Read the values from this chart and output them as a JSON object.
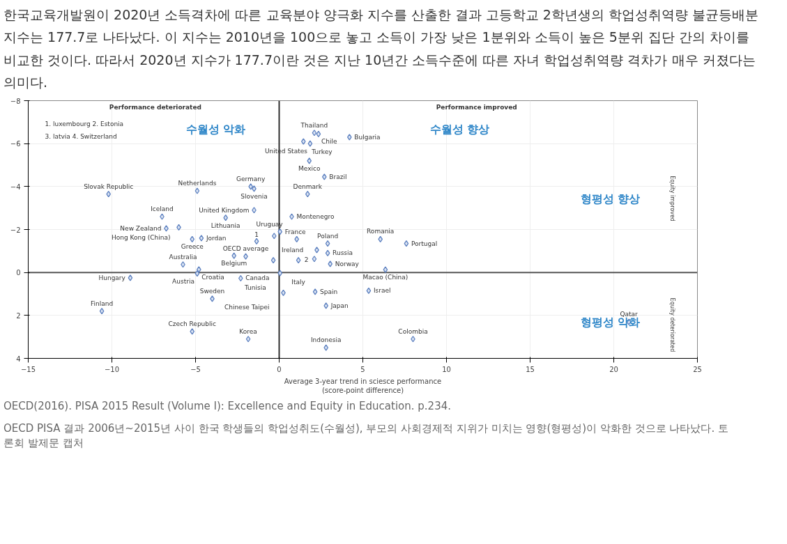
{
  "chart_data": {
    "type": "scatter",
    "xlabel": "Average 3-year trend in sciesce performance\n(score-point difference)",
    "x": [
      -10.2,
      -4.9,
      -1.7,
      -1.5,
      -1.5,
      -7.0,
      -3.2,
      -6.75,
      -6.0,
      -5.2,
      -4.65,
      -1.35,
      -0.3,
      -2.0,
      -2.7,
      -0.35,
      -5.75,
      -4.8,
      -4.9,
      -8.9,
      -2.3,
      -10.6,
      -4.0,
      -5.2,
      -1.85,
      2.1,
      2.35,
      1.45,
      1.85,
      4.2,
      1.8,
      2.7,
      1.7,
      0.75,
      0.05,
      1.05,
      2.9,
      6.05,
      7.6,
      2.9,
      1.15,
      2.25,
      2.1,
      3.05,
      6.35,
      0.05,
      5.35,
      2.15,
      0.25,
      2.8,
      2.8,
      8.0,
      20.9
    ],
    "series": [
      {
        "color": "#5b7fbf",
        "values": [
          -3.65,
          -3.8,
          -4.0,
          -3.9,
          -2.9,
          -2.6,
          -2.55,
          -2.05,
          -2.1,
          -1.55,
          -1.6,
          -1.45,
          -1.7,
          -0.75,
          -0.78,
          -0.57,
          -0.37,
          -0.14,
          0.05,
          0.25,
          0.27,
          1.8,
          1.22,
          2.75,
          3.1,
          -6.5,
          -6.45,
          -6.1,
          -6.0,
          -6.3,
          -5.2,
          -4.45,
          -3.65,
          -2.6,
          -1.9,
          -1.55,
          -1.35,
          -1.55,
          -1.35,
          -0.9,
          -0.57,
          -1.05,
          -0.63,
          -0.4,
          -0.13,
          0.03,
          0.85,
          0.9,
          0.95,
          1.55,
          3.5,
          3.1,
          2.3
        ]
      }
    ],
    "xlim": [
      -15,
      25
    ],
    "ylim": [
      4,
      -8
    ],
    "xticks": [
      -15,
      -10,
      -5,
      0,
      5,
      10,
      15,
      20,
      25
    ],
    "yticks": [
      -8,
      -6,
      -4,
      -2,
      0,
      2,
      4
    ],
    "grid": true,
    "marker": "diamond",
    "ref_lines": [
      {
        "axis": "x",
        "value": 0,
        "color": "#303030"
      },
      {
        "axis": "y",
        "value": 0,
        "color": "#555555"
      }
    ],
    "annotations": [
      "한국교육개발원이 2020년 소득격차에 따른 교육분야 양극화 지수를 산출한 결과 고등학교 2학년생의 학업성취역량 불균등배분 지수는 177.7로 나타났다. 이 지수는 2010년을 100으로 놓고 소득이 가장 낮은 1분위와 소득이 높은 5분위 집단 간의 차이를 비교한 것이다. 따라서 2020년 지수가 177.7이란 것은 지난 10년간 소득수준에 따른 자녀 학업성취역량 격차가 매우 커졌다는 의미다.",
      "OECD(2016). PISA 2015 Result (Volume I): Excellence and Equity in Education. p.234.",
      "OECD PISA 결과 2006년~2015년 사이 한국 학생들의 학업성취도(수월성), 부모의 사회경제적 지위가 미치는 영향(형평성)이 악화한 것으로 나타났다. 토론회 발제문 캡처",
      "Performance deteriorated",
      "Performance improved",
      "Equity improved",
      "Equity deteriorated",
      "1. luxembourg  2. Estonia",
      "3. latvia          4. Switzerland",
      "수월성 악화",
      "수월성 향상",
      "형평성 향상",
      "형평성 악화",
      {
        "text": "Slovak Republic",
        "x": -10.2,
        "y": -3.65
      },
      {
        "text": "Netherlands",
        "x": -4.9,
        "y": -3.8
      },
      {
        "text": "Germany",
        "x": -1.7,
        "y": -4.0
      },
      {
        "text": "Slovenia",
        "x": -1.5,
        "y": -3.9
      },
      {
        "text": "United Kingdom",
        "x": -1.5,
        "y": -2.9
      },
      {
        "text": "Iceland",
        "x": -7.0,
        "y": -2.6
      },
      {
        "text": "Lithuania",
        "x": -3.2,
        "y": -2.55
      },
      {
        "text": "New Zealand",
        "x": -6.75,
        "y": -2.05
      },
      {
        "text": "Hong Kong (China)",
        "x": -6.0,
        "y": -2.1
      },
      {
        "text": "Greece",
        "x": -5.2,
        "y": -1.55
      },
      {
        "text": "Jordan",
        "x": -4.65,
        "y": -1.6
      },
      {
        "text": "1",
        "x": -1.35,
        "y": -1.45
      },
      {
        "text": "OECD average",
        "x": -2.0,
        "y": -0.75
      },
      {
        "text": "Belgium",
        "x": -2.7,
        "y": -0.78
      },
      {
        "text": "Ireland",
        "x": -0.35,
        "y": -0.57
      },
      {
        "text": "Australia",
        "x": -5.75,
        "y": -0.37
      },
      {
        "text": "Croatia",
        "x": -4.8,
        "y": -0.14
      },
      {
        "text": "Austria",
        "x": -4.9,
        "y": 0.05
      },
      {
        "text": "Hungary",
        "x": -8.9,
        "y": 0.25
      },
      {
        "text": "Canada",
        "x": -2.3,
        "y": 0.27
      },
      {
        "text": "Finland",
        "x": -10.6,
        "y": 1.8
      },
      {
        "text": "Sweden",
        "x": -4.0,
        "y": 1.22
      },
      {
        "text": "Czech Republic",
        "x": -5.2,
        "y": 2.75
      },
      {
        "text": "Korea",
        "x": -1.85,
        "y": 3.1
      },
      {
        "text": "Thailand",
        "x": 2.1,
        "y": -6.5
      },
      {
        "text": "Chile",
        "x": 2.35,
        "y": -6.45
      },
      {
        "text": "Turkey",
        "x": 1.45,
        "y": -6.1
      },
      {
        "text": "United States",
        "x": 1.85,
        "y": -6.0
      },
      {
        "text": "Bulgaria",
        "x": 4.2,
        "y": -6.3
      },
      {
        "text": "Mexico",
        "x": 1.8,
        "y": -5.2
      },
      {
        "text": "Brazil",
        "x": 2.7,
        "y": -4.45
      },
      {
        "text": "Denmark",
        "x": 1.7,
        "y": -3.65
      },
      {
        "text": "Montenegro",
        "x": 0.75,
        "y": -2.6
      },
      {
        "text": "France",
        "x": 0.05,
        "y": -1.9
      },
      {
        "text": "Uruguay",
        "x": 1.05,
        "y": -1.55
      },
      {
        "text": "Poland",
        "x": 2.9,
        "y": -1.35
      },
      {
        "text": "Romania",
        "x": 6.05,
        "y": -1.55
      },
      {
        "text": "Portugal",
        "x": 7.6,
        "y": -1.35
      },
      {
        "text": "Russia",
        "x": 2.9,
        "y": -0.9
      },
      {
        "text": "Italy",
        "x": 1.15,
        "y": -0.57
      },
      {
        "text": "2",
        "x": 2.25,
        "y": -1.05
      },
      {
        "text": "Norway",
        "x": 3.05,
        "y": -0.4
      },
      {
        "text": "Macao (China)",
        "x": 6.35,
        "y": -0.13
      },
      {
        "text": "Tunisia",
        "x": 0.05,
        "y": 0.03
      },
      {
        "text": "Israel",
        "x": 5.35,
        "y": 0.85
      },
      {
        "text": "Spain",
        "x": 2.15,
        "y": 0.9
      },
      {
        "text": "Chinese Taipei",
        "x": 0.25,
        "y": 0.95
      },
      {
        "text": "Japan",
        "x": 2.8,
        "y": 1.55
      },
      {
        "text": "Indonesia",
        "x": 2.8,
        "y": 3.5
      },
      {
        "text": "Colombia",
        "x": 8.0,
        "y": 3.1
      },
      {
        "text": "Qatar",
        "x": 20.9,
        "y": 2.3
      }
    ]
  }
}
